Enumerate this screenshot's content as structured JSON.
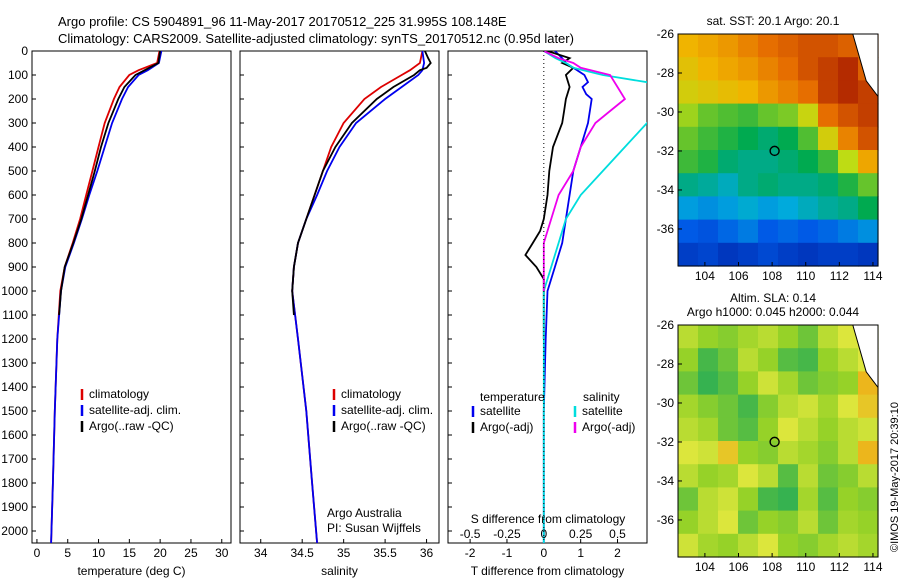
{
  "header": {
    "line1": "Argo profile: CS 5904891_96 11-May-2017 20170512_225 31.995S 108.148E",
    "line2": "Climatology: CARS2009. Satellite-adjusted climatology: synTS_20170512.nc (0.95d later)"
  },
  "credit": "©IMOS 19-May-2017 20:39:10",
  "colors": {
    "clim": "#dd0000",
    "sat": "#0000ee",
    "argo": "#000000",
    "sat_s": "#00dddd",
    "argo_s": "#ee00ee",
    "marker": "#333333"
  },
  "chart_data": [
    {
      "id": "temp",
      "type": "line",
      "xlabel": "temperature (deg C)",
      "ylabel": "",
      "xlim": [
        -0.8,
        31.5
      ],
      "ylim": [
        0,
        2050
      ],
      "xticks": [
        0,
        5,
        10,
        15,
        20,
        25,
        30
      ],
      "xtick_labels": [
        "0",
        "5",
        "10",
        "15",
        "20",
        "25",
        "30"
      ],
      "yticks": [
        0,
        100,
        200,
        300,
        400,
        500,
        600,
        700,
        800,
        900,
        1000,
        1100,
        1200,
        1300,
        1400,
        1500,
        1600,
        1700,
        1800,
        1900,
        2000
      ],
      "ytick_labels": [
        "0",
        "100",
        "200",
        "300",
        "400",
        "500",
        "600",
        "700",
        "800",
        "900",
        "1000",
        "1100",
        "1200",
        "1300",
        "1400",
        "1500",
        "1600",
        "1700",
        "1800",
        "1900",
        "2000"
      ],
      "legend": {
        "position": "center",
        "entries": [
          "climatology",
          "satellite-adj. clim.",
          "Argo(..raw -QC)"
        ]
      },
      "annotation": [],
      "series": [
        {
          "name": "climatology",
          "color": "#dd0000",
          "depth": [
            0,
            50,
            80,
            100,
            150,
            200,
            300,
            400,
            500,
            600,
            700,
            800,
            900,
            1000,
            1200,
            1500,
            1800,
            2050
          ],
          "values": [
            19.9,
            19.5,
            16.5,
            15.0,
            13.4,
            12.5,
            11.0,
            10.0,
            9.0,
            8.0,
            7.0,
            5.8,
            4.5,
            3.8,
            3.3,
            2.9,
            2.6,
            2.3
          ]
        },
        {
          "name": "satellite-adj. clim.",
          "color": "#0000ee",
          "depth": [
            0,
            50,
            80,
            100,
            150,
            200,
            300,
            400,
            500,
            600,
            700,
            800,
            900,
            1000,
            1200,
            1500,
            1800,
            2050
          ],
          "values": [
            20.2,
            19.8,
            18.0,
            16.5,
            14.8,
            13.8,
            12.2,
            11.0,
            9.8,
            8.5,
            7.3,
            6.0,
            4.6,
            3.9,
            3.3,
            2.9,
            2.6,
            2.3
          ]
        },
        {
          "name": "Argo(..raw -QC)",
          "color": "#000000",
          "depth": [
            0,
            50,
            80,
            100,
            150,
            200,
            300,
            400,
            500,
            600,
            700,
            800,
            900,
            1000,
            1100
          ],
          "values": [
            20.0,
            19.7,
            17.5,
            16.0,
            14.2,
            13.2,
            11.6,
            10.4,
            9.4,
            8.3,
            7.2,
            5.9,
            4.5,
            3.9,
            3.6
          ]
        }
      ]
    },
    {
      "id": "salinity",
      "type": "line",
      "xlabel": "salinity",
      "ylabel": "",
      "xlim": [
        33.75,
        36.15
      ],
      "ylim": [
        0,
        2050
      ],
      "xticks": [
        34,
        34.5,
        35,
        35.5,
        36
      ],
      "xtick_labels": [
        "34",
        "34.5",
        "35",
        "35.5",
        "36"
      ],
      "yticks": [],
      "ytick_labels": [],
      "legend": {
        "position": "center",
        "entries": [
          "climatology",
          "satellite-adj. clim.",
          "Argo(..raw -QC)"
        ]
      },
      "annotation": [
        "Argo Australia",
        "PI: Susan Wijffels"
      ],
      "series": [
        {
          "name": "climatology",
          "color": "#dd0000",
          "depth": [
            0,
            50,
            80,
            100,
            150,
            200,
            300,
            400,
            500,
            600,
            700,
            800,
            900,
            1000,
            1200,
            1500,
            1800,
            2050
          ],
          "values": [
            35.95,
            35.92,
            35.8,
            35.7,
            35.45,
            35.25,
            35.0,
            34.85,
            34.75,
            34.65,
            34.55,
            34.45,
            34.4,
            34.38,
            34.45,
            34.55,
            34.62,
            34.68
          ]
        },
        {
          "name": "satellite-adj. clim.",
          "color": "#0000ee",
          "depth": [
            0,
            50,
            80,
            100,
            150,
            200,
            300,
            400,
            500,
            600,
            700,
            800,
            900,
            1000,
            1200,
            1500,
            1800,
            2050
          ],
          "values": [
            35.95,
            35.97,
            35.95,
            35.9,
            35.7,
            35.5,
            35.15,
            34.95,
            34.8,
            34.68,
            34.55,
            34.45,
            34.4,
            34.38,
            34.45,
            34.55,
            34.62,
            34.68
          ]
        },
        {
          "name": "Argo(..raw -QC)",
          "color": "#000000",
          "depth": [
            0,
            30,
            50,
            70,
            80,
            100,
            150,
            200,
            300,
            400,
            500,
            600,
            700,
            800,
            900,
            1000,
            1100
          ],
          "values": [
            35.98,
            36.02,
            36.05,
            36.0,
            35.92,
            35.85,
            35.6,
            35.4,
            35.1,
            34.9,
            34.75,
            34.65,
            34.55,
            34.45,
            34.4,
            34.38,
            34.4
          ]
        }
      ]
    },
    {
      "id": "difference",
      "type": "line",
      "xlabel": "T difference from climatology",
      "ylabel": "",
      "xlabel_top": "S difference from climatology",
      "xlim": [
        -2.6,
        2.8
      ],
      "ylim": [
        0,
        2050
      ],
      "xticks": [
        -2,
        -1,
        0,
        1,
        2
      ],
      "xtick_labels": [
        "-2",
        "-1",
        "0",
        "1",
        "2"
      ],
      "xticks_s": [
        -0.5,
        -0.25,
        0,
        0.25,
        0.5
      ],
      "xtick_labels_s": [
        "-0.5",
        "-0.25",
        "0",
        "0.25",
        "0.5"
      ],
      "legend": {
        "position": "center",
        "temperature_title": "temperature",
        "salinity_title": "salinity",
        "entries": [
          "satellite",
          "Argo(-adj)",
          "satellite",
          "Argo(-adj)"
        ]
      },
      "annotation": [],
      "series": [
        {
          "name": "temperature satellite",
          "color": "#0000ee",
          "depth": [
            0,
            30,
            50,
            70,
            100,
            130,
            150,
            180,
            200,
            300,
            400,
            500,
            600,
            700,
            800,
            900,
            1000,
            1200,
            1500,
            1800,
            2050
          ],
          "values": [
            0.3,
            0.5,
            0.6,
            0.8,
            1.1,
            1.2,
            1.05,
            1.15,
            1.3,
            1.2,
            1.0,
            0.8,
            0.7,
            0.6,
            0.5,
            0.3,
            0.1,
            0.05,
            0.0,
            0.0,
            0.0
          ]
        },
        {
          "name": "temperature Argo(-adj)",
          "color": "#000000",
          "depth": [
            0,
            30,
            50,
            70,
            100,
            150,
            200,
            250,
            300,
            400,
            500,
            600,
            700,
            750,
            800,
            850,
            900,
            950,
            1000,
            1100,
            1200
          ],
          "values": [
            0.1,
            0.7,
            0.5,
            0.8,
            0.6,
            0.7,
            0.6,
            0.55,
            0.5,
            0.25,
            0.15,
            0.1,
            0.0,
            -0.1,
            -0.3,
            -0.5,
            -0.2,
            0.0,
            0.0,
            0.0,
            0.0
          ]
        },
        {
          "name": "salinity satellite",
          "color": "#00dddd",
          "depth": [
            0,
            30,
            50,
            70,
            100,
            150,
            200,
            300,
            400,
            500,
            600,
            700,
            800,
            900,
            1000,
            1200,
            1500,
            1800,
            2050
          ],
          "values": [
            0.0,
            0.08,
            0.15,
            0.2,
            0.4,
            0.9,
            0.9,
            0.7,
            0.55,
            0.4,
            0.25,
            0.15,
            0.1,
            0.05,
            0.0,
            0.0,
            0.0,
            0.0,
            0.0
          ]
        },
        {
          "name": "salinity Argo(-adj)",
          "color": "#ee00ee",
          "depth": [
            0,
            30,
            50,
            70,
            100,
            150,
            200,
            250,
            300,
            400,
            500,
            600,
            700,
            800,
            900,
            1000
          ],
          "values": [
            0.0,
            0.1,
            0.2,
            0.25,
            0.45,
            0.5,
            0.55,
            0.45,
            0.35,
            0.25,
            0.2,
            0.1,
            0.05,
            0.0,
            0.0,
            0.0
          ]
        }
      ]
    },
    {
      "id": "sst_map",
      "type": "heatmap",
      "title": "sat. SST: 20.1  Argo: 20.1",
      "xlim": [
        102.4,
        114.3
      ],
      "ylim": [
        -37.9,
        -26
      ],
      "xticks": [
        104,
        106,
        108,
        110,
        112,
        114
      ],
      "xtick_labels": [
        "104",
        "106",
        "108",
        "110",
        "112",
        "114"
      ],
      "yticks": [
        -26,
        -28,
        -30,
        -32,
        -34,
        -36
      ],
      "ytick_labels": [
        "-26",
        "-28",
        "-30",
        "-32",
        "-34",
        "-36"
      ],
      "marker": {
        "lon": 108.148,
        "lat": -31.995
      },
      "field": {
        "lon": [
          102.4,
          103.6,
          104.8,
          106.0,
          107.2,
          108.4,
          109.6,
          110.8,
          112.0,
          113.2
        ],
        "lat": [
          -26.0,
          -27.2,
          -28.4,
          -29.6,
          -30.8,
          -32.0,
          -33.2,
          -34.4,
          -35.6,
          -36.8
        ],
        "level": [
          [
            0.78,
            0.8,
            0.82,
            0.85,
            0.88,
            0.9,
            0.92,
            0.92,
            0.9,
            0.88
          ],
          [
            0.75,
            0.78,
            0.8,
            0.82,
            0.85,
            0.88,
            0.92,
            0.95,
            0.98,
            0.9
          ],
          [
            0.72,
            0.74,
            0.76,
            0.78,
            0.82,
            0.85,
            0.88,
            0.95,
            0.98,
            0.95
          ],
          [
            0.65,
            0.6,
            0.58,
            0.55,
            0.6,
            0.62,
            0.7,
            0.88,
            0.92,
            0.95
          ],
          [
            0.6,
            0.55,
            0.5,
            0.45,
            0.42,
            0.45,
            0.58,
            0.72,
            0.85,
            0.92
          ],
          [
            0.55,
            0.5,
            0.42,
            0.4,
            0.4,
            0.42,
            0.45,
            0.55,
            0.68,
            0.8
          ],
          [
            0.4,
            0.38,
            0.35,
            0.4,
            0.42,
            0.4,
            0.4,
            0.42,
            0.5,
            0.6
          ],
          [
            0.3,
            0.28,
            0.3,
            0.33,
            0.3,
            0.32,
            0.35,
            0.38,
            0.4,
            0.45
          ],
          [
            0.2,
            0.18,
            0.22,
            0.25,
            0.2,
            0.22,
            0.2,
            0.22,
            0.25,
            0.28
          ],
          [
            0.12,
            0.14,
            0.1,
            0.12,
            0.15,
            0.12,
            0.1,
            0.12,
            0.12,
            0.1
          ]
        ]
      }
    },
    {
      "id": "sla_map",
      "type": "heatmap",
      "title": "Altim. SLA: 0.14",
      "subtitle": "Argo h1000: 0.045 h2000: 0.044",
      "xlim": [
        102.4,
        114.3
      ],
      "ylim": [
        -37.9,
        -26
      ],
      "xticks": [
        104,
        106,
        108,
        110,
        112,
        114
      ],
      "xtick_labels": [
        "104",
        "106",
        "108",
        "110",
        "112",
        "114"
      ],
      "yticks": [
        -26,
        -28,
        -30,
        -32,
        -34,
        -36
      ],
      "ytick_labels": [
        "-26",
        "-28",
        "-30",
        "-32",
        "-34",
        "-36"
      ],
      "marker": {
        "lon": 108.148,
        "lat": -31.995
      },
      "field": {
        "lon": [
          102.4,
          103.6,
          104.8,
          106.0,
          107.2,
          108.4,
          109.6,
          110.8,
          112.0,
          113.2
        ],
        "lat": [
          -26.0,
          -27.2,
          -28.4,
          -29.6,
          -30.8,
          -32.0,
          -33.2,
          -34.4,
          -35.6,
          -36.8
        ],
        "level": [
          [
            0.55,
            0.5,
            0.48,
            0.52,
            0.55,
            0.5,
            0.45,
            0.55,
            0.6,
            0.58
          ],
          [
            0.5,
            0.4,
            0.45,
            0.55,
            0.5,
            0.42,
            0.4,
            0.5,
            0.55,
            0.6
          ],
          [
            0.45,
            0.38,
            0.42,
            0.5,
            0.58,
            0.52,
            0.45,
            0.48,
            0.5,
            0.72
          ],
          [
            0.52,
            0.48,
            0.45,
            0.4,
            0.48,
            0.55,
            0.58,
            0.52,
            0.6,
            0.68
          ],
          [
            0.55,
            0.52,
            0.45,
            0.42,
            0.5,
            0.6,
            0.55,
            0.5,
            0.55,
            0.58
          ],
          [
            0.6,
            0.58,
            0.68,
            0.5,
            0.48,
            0.55,
            0.52,
            0.48,
            0.55,
            0.72
          ],
          [
            0.55,
            0.5,
            0.52,
            0.6,
            0.55,
            0.42,
            0.55,
            0.45,
            0.48,
            0.55
          ],
          [
            0.45,
            0.55,
            0.58,
            0.5,
            0.4,
            0.38,
            0.52,
            0.42,
            0.5,
            0.48
          ],
          [
            0.5,
            0.55,
            0.6,
            0.45,
            0.5,
            0.48,
            0.55,
            0.45,
            0.52,
            0.5
          ],
          [
            0.58,
            0.52,
            0.5,
            0.55,
            0.6,
            0.5,
            0.48,
            0.52,
            0.55,
            0.52
          ]
        ]
      }
    }
  ]
}
